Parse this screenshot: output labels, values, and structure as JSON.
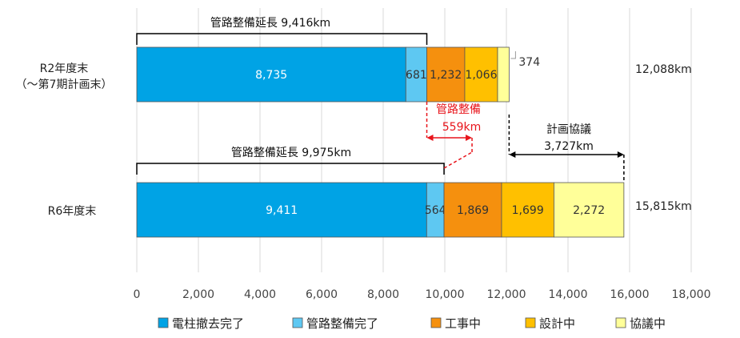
{
  "chart_data": {
    "type": "bar",
    "orientation": "horizontal",
    "stacked": true,
    "categories": [
      {
        "lines": [
          "R2年度末",
          "（～第7期計画末）"
        ]
      },
      {
        "lines": [
          "R6年度末"
        ]
      }
    ],
    "series": [
      {
        "name": "電柱撤去完了",
        "color": "#00a3e5",
        "values": [
          8735,
          9411
        ],
        "labels": [
          "8,735",
          "9,411"
        ],
        "label_color": "#ffffff"
      },
      {
        "name": "管路整備完了",
        "color": "#5ec8f2",
        "values": [
          681,
          564
        ],
        "labels": [
          "681",
          "564"
        ],
        "label_color": "#333333"
      },
      {
        "name": "工事中",
        "color": "#f5900e",
        "values": [
          1232,
          1869
        ],
        "labels": [
          "1,232",
          "1,869"
        ],
        "label_color": "#333333"
      },
      {
        "name": "設計中",
        "color": "#ffc000",
        "values": [
          1066,
          1699
        ],
        "labels": [
          "1,066",
          "1,699"
        ],
        "label_color": "#333333"
      },
      {
        "name": "協議中",
        "color": "#ffff99",
        "values": [
          374,
          2272
        ],
        "labels": [
          "374",
          "2,272"
        ],
        "label_color": "#333333"
      }
    ],
    "totals": [
      "12,088km",
      "15,815km"
    ],
    "xlim": [
      0,
      18000
    ],
    "xticks": [
      0,
      2000,
      4000,
      6000,
      8000,
      10000,
      12000,
      14000,
      16000,
      18000
    ],
    "xtick_labels": [
      "0",
      "2,000",
      "4,000",
      "6,000",
      "8,000",
      "10,000",
      "12,000",
      "14,000",
      "16,000",
      "18,000"
    ],
    "grid": "vertical",
    "legend_position": "bottom",
    "annotations": {
      "pipe_length_r2": {
        "text": "管路整備延長  9,416km",
        "from": 0,
        "to": 9416
      },
      "pipe_length_r6": {
        "text": "管路整備延長  9,975km",
        "from": 0,
        "to": 9975
      },
      "pipe_increase": {
        "lines": [
          "管路整備",
          "559km"
        ],
        "color": "#e8141b"
      },
      "plan_consultation": {
        "lines": [
          "計画協議",
          "3,727km"
        ],
        "from": 12088,
        "to": 15815
      }
    }
  }
}
